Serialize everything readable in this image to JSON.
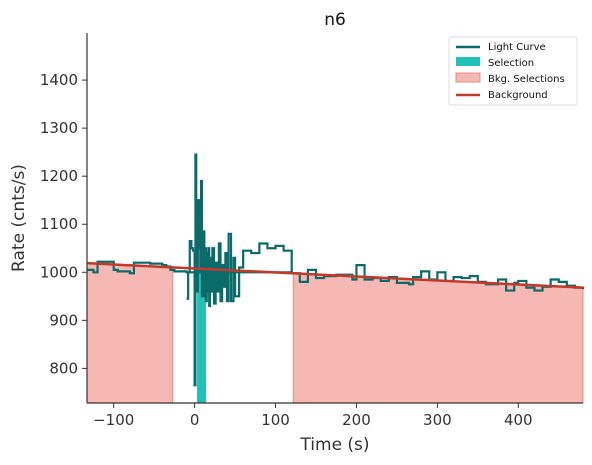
{
  "chart_data": {
    "type": "line",
    "title": "n6",
    "xlabel": "Time (s)",
    "ylabel": "Rate (cnts/s)",
    "xlim": [
      -133,
      480
    ],
    "ylim": [
      728,
      1498
    ],
    "xticks": [
      -100,
      0,
      100,
      200,
      300,
      400
    ],
    "yticks": [
      800,
      900,
      1000,
      1100,
      1200,
      1300,
      1400
    ],
    "grid": false,
    "legend_position": "top-right",
    "legend": [
      "Light Curve",
      "Selection",
      "Bkg. Selections",
      "Background"
    ],
    "colors": {
      "light_curve": "#0b6b6b",
      "selection": "#1fc2b8",
      "bkg_fill": "#f6b8b3",
      "bkg_edge": "#f08a80",
      "background": "#c0392b",
      "axis": "#333333"
    },
    "series": [
      {
        "name": "Light Curve",
        "step": true,
        "x": [
          -133,
          -125,
          -120,
          -100,
          -95,
          -80,
          -75,
          -55,
          -40,
          -35,
          -30,
          -25,
          -10,
          120,
          130,
          140,
          150,
          160,
          175,
          195,
          200,
          210,
          220,
          230,
          240,
          250,
          265,
          270,
          280,
          290,
          300,
          310,
          320,
          330,
          340,
          350,
          360,
          375,
          385,
          395,
          400,
          410,
          420,
          430,
          440,
          450,
          460,
          470,
          480
        ],
        "y": [
          1005,
          1000,
          1022,
          1005,
          1002,
          998,
          1020,
          1018,
          1015,
          1012,
          1005,
          1002,
          1000,
          998,
          980,
          1005,
          988,
          992,
          995,
          985,
          1015,
          985,
          988,
          982,
          990,
          978,
          975,
          990,
          1002,
          985,
          1000,
          982,
          990,
          988,
          992,
          980,
          975,
          985,
          962,
          978,
          982,
          968,
          962,
          970,
          985,
          980,
          972,
          968,
          965
        ]
      },
      {
        "name": "Light Curve (burst)",
        "step": true,
        "x": [
          -10,
          -8,
          -6,
          -4,
          -2,
          0,
          1,
          2,
          3,
          4,
          5,
          6,
          7,
          8,
          9,
          10,
          11,
          12,
          13,
          14,
          15,
          16,
          17,
          18,
          19,
          20,
          22,
          24,
          26,
          28,
          30,
          32,
          34,
          36,
          38,
          40,
          42,
          45,
          48,
          50,
          55,
          60,
          70,
          80,
          90,
          100,
          110,
          120
        ],
        "y": [
          945,
          1000,
          1065,
          1050,
          1045,
          765,
          1245,
          1110,
          960,
          1150,
          1050,
          1150,
          1000,
          1190,
          950,
          1060,
          1085,
          950,
          1050,
          940,
          1040,
          960,
          1050,
          930,
          1030,
          960,
          1050,
          935,
          1020,
          960,
          1060,
          940,
          1015,
          970,
          1040,
          940,
          1080,
          940,
          1030,
          950,
          1010,
          1045,
          1040,
          1060,
          1050,
          1055,
          1045,
          1000
        ]
      },
      {
        "name": "Background",
        "x": [
          -133,
          480
        ],
        "y": [
          1019,
          968
        ]
      }
    ],
    "selection": {
      "x_start": 3,
      "x_end": 14
    },
    "bkg_selections": [
      {
        "x_start": -133,
        "x_end": -27
      },
      {
        "x_start": 122,
        "x_end": 480
      }
    ]
  }
}
